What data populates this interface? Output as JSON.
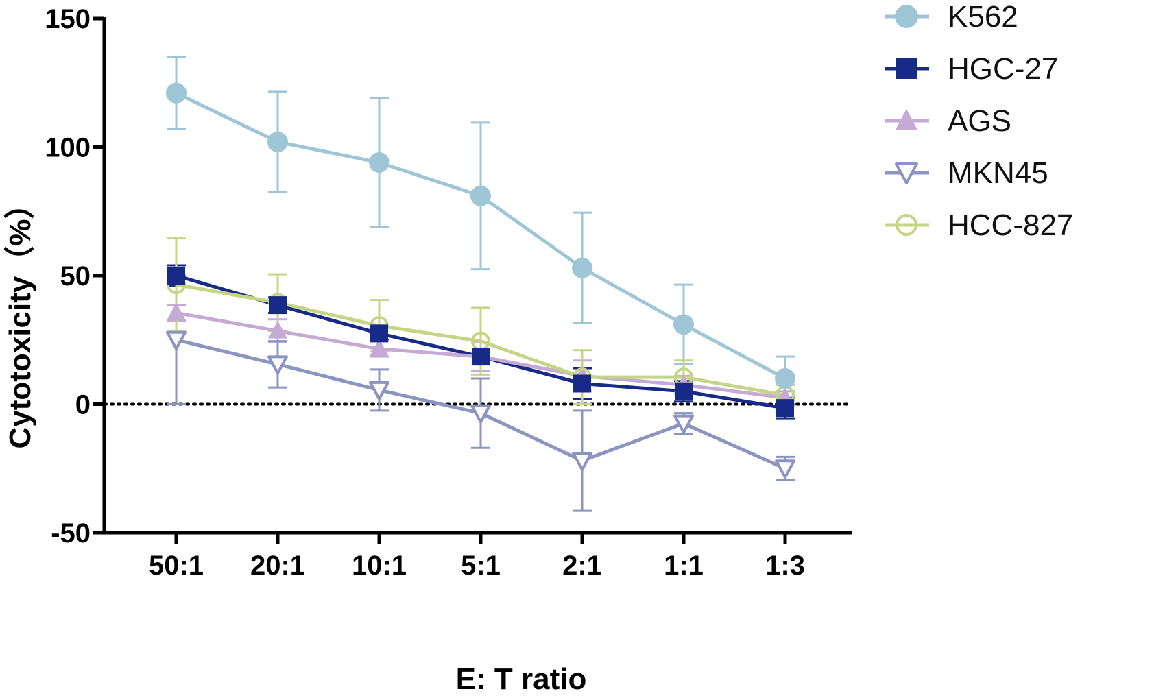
{
  "chart_data": {
    "type": "line",
    "title": "",
    "xlabel": "E: T ratio",
    "ylabel": "Cytotoxicity（%）",
    "categories": [
      "50:1",
      "20:1",
      "10:1",
      "5:1",
      "2:1",
      "1:1",
      "1:3"
    ],
    "ylim": [
      -50,
      150
    ],
    "yticks": [
      -50,
      0,
      50,
      100,
      150
    ],
    "reference_line": {
      "y": 0,
      "style": "dotted"
    },
    "legend_position": "top-right",
    "series": [
      {
        "name": "K562",
        "marker": "circle-filled",
        "color": "#9fc6d6",
        "values": [
          121,
          102,
          94,
          81,
          53,
          31,
          10
        ],
        "errors": [
          14,
          19.5,
          25,
          28.5,
          21.5,
          15.5,
          8.5
        ]
      },
      {
        "name": "HGC-27",
        "marker": "square-filled",
        "color": "#182a87",
        "values": [
          50,
          38.5,
          27.5,
          18.5,
          8,
          5,
          -1.5
        ],
        "errors": [
          4,
          3,
          2.5,
          5.5,
          6,
          4,
          4
        ]
      },
      {
        "name": "AGS",
        "marker": "triangle-up-filled",
        "color": "#c6aad6",
        "values": [
          35.5,
          28.5,
          21.5,
          18.5,
          11,
          7.5,
          2.5
        ],
        "errors": [
          3,
          4.5,
          3,
          5.5,
          6,
          3.5,
          2.5
        ]
      },
      {
        "name": "MKN45",
        "marker": "triangle-down-open",
        "color": "#8c94c0",
        "values": [
          25,
          15.5,
          5.5,
          -3.5,
          -22,
          -7.5,
          -25
        ],
        "errors": [
          25,
          9,
          8,
          13.5,
          19.5,
          4,
          4.5
        ]
      },
      {
        "name": "HCC-827",
        "marker": "circle-open",
        "color": "#c4d686",
        "values": [
          46.5,
          39.5,
          30.5,
          24.5,
          10.5,
          10.5,
          3.5
        ],
        "errors": [
          18,
          11,
          10,
          13,
          10.5,
          6.5,
          4
        ]
      }
    ]
  }
}
